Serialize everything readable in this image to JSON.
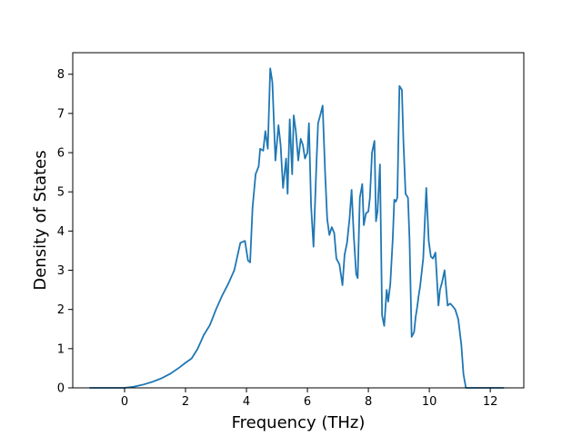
{
  "chart_data": {
    "type": "line",
    "title": "",
    "xlabel": "Frequency (THz)",
    "ylabel": "Density of States",
    "xlim": [
      -1.7,
      13.1
    ],
    "ylim": [
      0,
      8.55
    ],
    "x_ticks": [
      0,
      2,
      4,
      6,
      8,
      10,
      12
    ],
    "y_ticks": [
      0,
      1,
      2,
      3,
      4,
      5,
      6,
      7,
      8
    ],
    "grid": false,
    "line_color": "#1f77b4",
    "series": [
      {
        "x": [
          -1.15,
          0.0,
          0.3,
          0.6,
          0.9,
          1.2,
          1.5,
          1.8,
          2.0,
          2.2,
          2.4,
          2.6,
          2.8,
          3.0,
          3.2,
          3.4,
          3.6,
          3.8,
          3.95,
          4.05,
          4.12,
          4.2,
          4.3,
          4.4,
          4.45,
          4.55,
          4.62,
          4.7,
          4.78,
          4.85,
          4.95,
          5.05,
          5.12,
          5.2,
          5.3,
          5.35,
          5.42,
          5.5,
          5.55,
          5.62,
          5.7,
          5.78,
          5.85,
          5.92,
          6.0,
          6.05,
          6.12,
          6.2,
          6.3,
          6.35,
          6.42,
          6.5,
          6.58,
          6.65,
          6.72,
          6.8,
          6.88,
          6.95,
          7.05,
          7.15,
          7.22,
          7.3,
          7.38,
          7.45,
          7.52,
          7.6,
          7.65,
          7.72,
          7.8,
          7.85,
          7.92,
          8.0,
          8.05,
          8.12,
          8.2,
          8.25,
          8.3,
          8.38,
          8.45,
          8.52,
          8.6,
          8.65,
          8.72,
          8.8,
          8.85,
          8.9,
          8.95,
          9.02,
          9.1,
          9.15,
          9.22,
          9.3,
          9.35,
          9.42,
          9.5,
          9.55,
          9.6,
          9.65,
          9.7,
          9.8,
          9.9,
          9.98,
          10.05,
          10.12,
          10.2,
          10.3,
          10.35,
          10.42,
          10.5,
          10.6,
          10.68,
          10.75,
          10.85,
          10.95,
          11.05,
          11.12,
          11.2,
          11.25,
          11.3,
          11.5,
          12.45
        ],
        "y": [
          0.0,
          0.0,
          0.03,
          0.08,
          0.15,
          0.24,
          0.36,
          0.52,
          0.64,
          0.75,
          1.0,
          1.35,
          1.6,
          2.0,
          2.35,
          2.65,
          3.0,
          3.7,
          3.75,
          3.25,
          3.2,
          4.6,
          5.45,
          5.65,
          6.1,
          6.05,
          6.55,
          6.1,
          8.15,
          7.8,
          5.8,
          6.7,
          6.2,
          5.1,
          5.85,
          4.95,
          6.85,
          5.45,
          6.95,
          6.55,
          5.8,
          6.35,
          6.2,
          5.85,
          6.0,
          6.75,
          4.65,
          3.6,
          5.8,
          6.75,
          6.95,
          7.2,
          5.5,
          4.3,
          3.9,
          4.1,
          3.95,
          3.3,
          3.15,
          2.62,
          3.4,
          3.7,
          4.3,
          5.05,
          3.9,
          2.9,
          2.8,
          4.85,
          5.2,
          4.15,
          4.45,
          4.5,
          4.85,
          6.0,
          6.3,
          4.25,
          4.5,
          5.7,
          1.85,
          1.58,
          2.5,
          2.2,
          2.65,
          3.8,
          4.8,
          4.75,
          4.85,
          7.7,
          7.6,
          6.3,
          4.95,
          4.85,
          3.8,
          1.3,
          1.42,
          1.8,
          2.05,
          2.35,
          2.6,
          3.3,
          5.1,
          3.75,
          3.35,
          3.3,
          3.45,
          2.1,
          2.5,
          2.7,
          3.0,
          2.1,
          2.15,
          2.1,
          2.0,
          1.75,
          1.1,
          0.35,
          0.0,
          0.0,
          0.0,
          0.0,
          0.0
        ]
      }
    ]
  }
}
